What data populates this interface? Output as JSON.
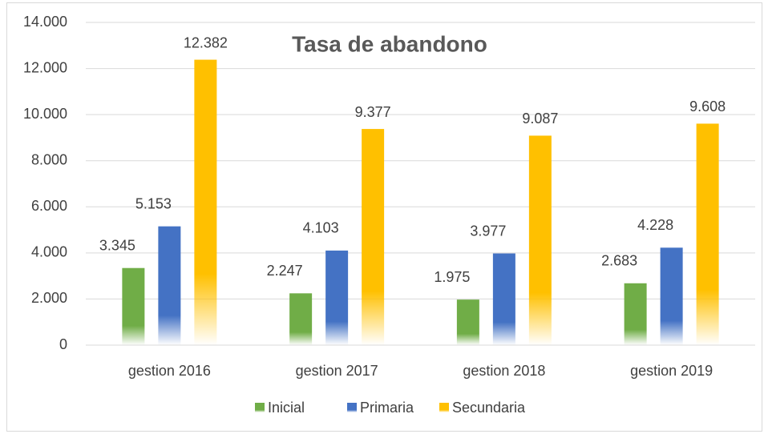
{
  "chart_data": {
    "type": "bar",
    "title": "Tasa de abandono",
    "categories": [
      "gestion 2016",
      "gestion 2017",
      "gestion 2018",
      "gestion 2019"
    ],
    "series": [
      {
        "name": "Inicial",
        "color": "#70ad47",
        "values": [
          3.345,
          2.247,
          1.975,
          2.683
        ]
      },
      {
        "name": "Primaria",
        "color": "#4472c4",
        "values": [
          5.153,
          4.103,
          3.977,
          4.228
        ]
      },
      {
        "name": "Secundaria",
        "color": "#ffc000",
        "values": [
          12.382,
          9.377,
          9.087,
          9.608
        ]
      }
    ],
    "ylim": [
      0,
      14
    ],
    "yticks": [
      0,
      {
        "value": 2,
        "label": "2.000"
      },
      {
        "value": 4,
        "label": "4.000"
      },
      {
        "value": 6,
        "label": "6.000"
      },
      {
        "value": 8,
        "label": "8.000"
      },
      {
        "value": 10,
        "label": "10.000"
      },
      {
        "value": 12,
        "label": "12.000"
      },
      {
        "value": 14,
        "label": "14.000"
      }
    ],
    "grid": true,
    "legend": "bottom"
  }
}
